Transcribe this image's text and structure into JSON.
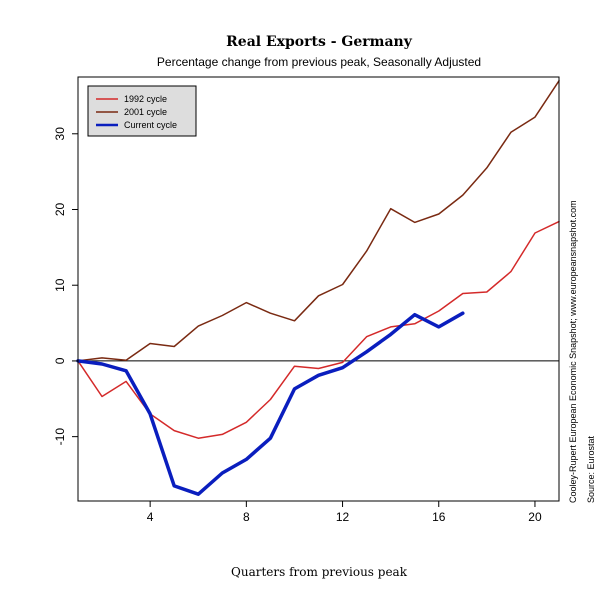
{
  "chart_data": {
    "type": "line",
    "title": "Real Exports - Germany",
    "subtitle": "Percentage change from previous peak, Seasonally Adjusted",
    "xlabel": "Quarters from previous peak",
    "ylabel": "",
    "xlim": [
      1,
      21
    ],
    "ylim": [
      -18.5,
      37.5
    ],
    "x_ticks": [
      4,
      8,
      12,
      16,
      20
    ],
    "y_ticks": [
      -10,
      0,
      10,
      20,
      30
    ],
    "grid": false,
    "zero_line": true,
    "legend_position": "top-left",
    "series": [
      {
        "name": "1992 cycle",
        "color": "#d42a2a",
        "line_width": 1.5,
        "x": [
          1,
          2,
          3,
          4,
          5,
          6,
          7,
          8,
          9,
          10,
          11,
          12,
          13,
          14,
          15,
          16,
          17,
          18,
          19,
          20,
          21
        ],
        "values": [
          0,
          -4.7,
          -2.7,
          -7.0,
          -9.2,
          -10.2,
          -9.7,
          -8.1,
          -5.1,
          -0.7,
          -1.0,
          -0.2,
          3.2,
          4.5,
          4.9,
          6.6,
          8.9,
          9.1,
          11.8,
          16.9,
          18.4
        ]
      },
      {
        "name": "2001 cycle",
        "color": "#7a2a12",
        "line_width": 1.5,
        "x": [
          1,
          2,
          3,
          4,
          5,
          6,
          7,
          8,
          9,
          10,
          11,
          12,
          13,
          14,
          15,
          16,
          17,
          18,
          19,
          20,
          21
        ],
        "values": [
          0,
          0.4,
          0.1,
          2.3,
          1.9,
          4.6,
          6.0,
          7.7,
          6.3,
          5.3,
          8.6,
          10.1,
          14.5,
          20.1,
          18.3,
          19.4,
          21.9,
          25.5,
          30.2,
          32.2,
          37.0
        ]
      },
      {
        "name": "Current cycle",
        "color": "#0a1ebe",
        "line_width": 3.5,
        "x": [
          1,
          2,
          3,
          4,
          5,
          6,
          7,
          8,
          9,
          10,
          11,
          12,
          13,
          14,
          15,
          16,
          17
        ],
        "values": [
          0,
          -0.4,
          -1.3,
          -7.0,
          -16.5,
          -17.6,
          -14.8,
          -13.0,
          -10.2,
          -3.7,
          -1.9,
          -0.9,
          1.2,
          3.5,
          6.1,
          4.5,
          6.3
        ]
      }
    ],
    "side_notes": [
      "Cooley-Rupert European Economic Snapshot; www.europeansnapshot.com",
      "Source: Eurostat"
    ]
  }
}
